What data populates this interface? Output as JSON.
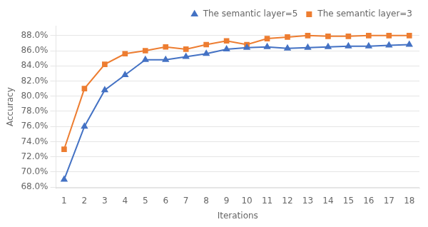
{
  "chart_data": {
    "type": "line",
    "x_label": "Iterations",
    "y_label": "Accuracy",
    "x": [
      1,
      2,
      3,
      4,
      5,
      6,
      7,
      8,
      9,
      10,
      11,
      12,
      13,
      14,
      15,
      16,
      17,
      18
    ],
    "series": [
      {
        "name": "The semantic layer=5",
        "color": "#4472c4",
        "marker": "triangle",
        "values": [
          0.69,
          0.76,
          0.808,
          0.828,
          0.848,
          0.848,
          0.852,
          0.856,
          0.862,
          0.864,
          0.865,
          0.863,
          0.864,
          0.865,
          0.866,
          0.866,
          0.867,
          0.868
        ]
      },
      {
        "name": "The semantic layer=3",
        "color": "#ed7d31",
        "marker": "square",
        "values": [
          0.73,
          0.81,
          0.842,
          0.856,
          0.86,
          0.865,
          0.862,
          0.868,
          0.873,
          0.868,
          0.876,
          0.878,
          0.88,
          0.879,
          0.879,
          0.88,
          0.88,
          0.88
        ]
      }
    ],
    "xlim": [
      0.6,
      18.5
    ],
    "xticks": [
      1,
      2,
      3,
      4,
      5,
      6,
      7,
      8,
      9,
      10,
      11,
      12,
      13,
      14,
      15,
      16,
      17,
      18
    ],
    "ylim": [
      0.679,
      0.893
    ],
    "yticks": [
      {
        "value": 0.68,
        "label": "68.0%"
      },
      {
        "value": 0.7,
        "label": "70.0%"
      },
      {
        "value": 0.72,
        "label": "72.0%"
      },
      {
        "value": 0.74,
        "label": "74.0%"
      },
      {
        "value": 0.76,
        "label": "76.0%"
      },
      {
        "value": 0.78,
        "label": "78.0%"
      },
      {
        "value": 0.8,
        "label": "80.0%"
      },
      {
        "value": 0.82,
        "label": "82.0%"
      },
      {
        "value": 0.84,
        "label": "84.0%"
      },
      {
        "value": 0.86,
        "label": "86.0%"
      },
      {
        "value": 0.88,
        "label": "88.0%"
      }
    ],
    "grid": "y",
    "legend": "upper right"
  }
}
